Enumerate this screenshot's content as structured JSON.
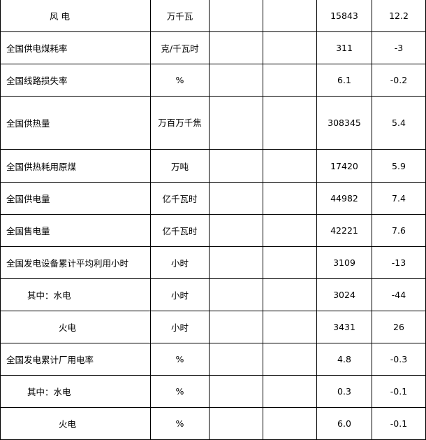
{
  "rows": [
    {
      "name": "风 电",
      "unit": "万千瓦",
      "value": "15843",
      "change": "12.2",
      "indent": "i3"
    },
    {
      "name": "全国供电煤耗率",
      "unit": "克/千瓦时",
      "value": "311",
      "change": "-3"
    },
    {
      "name": "全国线路损失率",
      "unit": "%",
      "value": "6.1",
      "change": "-0.2"
    },
    {
      "name": "全国供热量",
      "unit": "万百万千焦",
      "value": "308345",
      "change": "5.4"
    },
    {
      "name": "全国供热耗用原煤",
      "unit": "万吨",
      "value": "17420",
      "change": "5.9"
    },
    {
      "name": "全国供电量",
      "unit": "亿千瓦时",
      "value": "44982",
      "change": "7.4"
    },
    {
      "name": "全国售电量",
      "unit": "亿千瓦时",
      "value": "42221",
      "change": "7.6"
    },
    {
      "name": "全国发电设备累计平均利用小时",
      "unit": "小时",
      "value": "3109",
      "change": "-13"
    },
    {
      "name": "其中：水电",
      "unit": "小时",
      "value": "3024",
      "change": "-44",
      "indent": "i1"
    },
    {
      "name": "火电",
      "unit": "小时",
      "value": "3431",
      "change": "26",
      "indent": "i2"
    },
    {
      "name": "全国发电累计厂用电率",
      "unit": "%",
      "value": "4.8",
      "change": "-0.3"
    },
    {
      "name": "其中：水电",
      "unit": "%",
      "value": "0.3",
      "change": "-0.1",
      "indent": "i1"
    },
    {
      "name": "火电",
      "unit": "%",
      "value": "6.0",
      "change": "-0.1",
      "indent": "i2"
    }
  ]
}
